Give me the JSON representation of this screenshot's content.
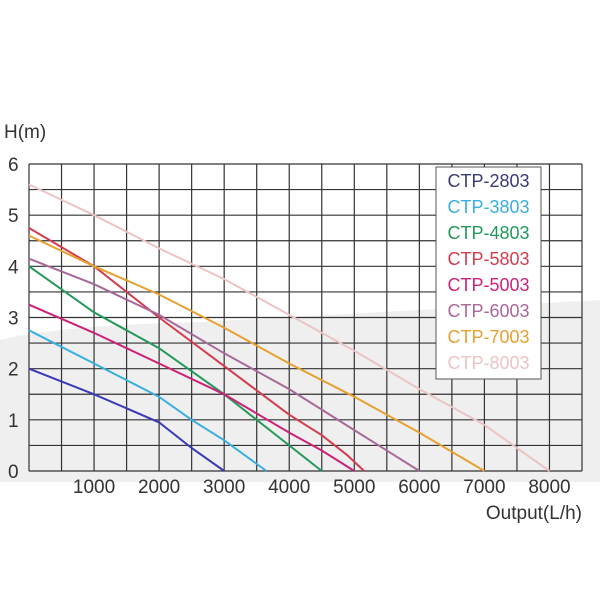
{
  "chart_data": {
    "type": "line",
    "title": "",
    "xlabel": "Output(L/h)",
    "ylabel": "H(m)",
    "xlim": [
      0,
      8500
    ],
    "ylim": [
      0,
      6
    ],
    "grid": true,
    "x_grid_step": 500,
    "y_grid_step": 0.5,
    "x_ticks": [
      1000,
      2000,
      3000,
      4000,
      5000,
      6000,
      7000,
      8000
    ],
    "y_ticks": [
      0,
      1,
      2,
      3,
      4,
      5,
      6
    ],
    "legend_placement": "top-right",
    "series": [
      {
        "name": "CTP-2803",
        "color": "#3a3ab8",
        "text_color": "#3a3a78",
        "points": [
          [
            0,
            2.0
          ],
          [
            1000,
            1.5
          ],
          [
            2000,
            0.95
          ],
          [
            2500,
            0.45
          ],
          [
            3000,
            0
          ]
        ]
      },
      {
        "name": "CTP-3803",
        "color": "#3aaee0",
        "text_color": "#3aaee0",
        "points": [
          [
            0,
            2.75
          ],
          [
            1000,
            2.1
          ],
          [
            2000,
            1.45
          ],
          [
            2500,
            1.0
          ],
          [
            3000,
            0.6
          ],
          [
            3650,
            0
          ]
        ]
      },
      {
        "name": "CTP-4803",
        "color": "#22995a",
        "text_color": "#22995a",
        "points": [
          [
            0,
            4.0
          ],
          [
            1000,
            3.1
          ],
          [
            2000,
            2.4
          ],
          [
            2500,
            1.95
          ],
          [
            3000,
            1.5
          ],
          [
            4000,
            0.5
          ],
          [
            4500,
            0
          ]
        ]
      },
      {
        "name": "CTP-5803",
        "color": "#d23c4e",
        "text_color": "#d23c4e",
        "points": [
          [
            0,
            4.75
          ],
          [
            1000,
            4.0
          ],
          [
            2000,
            3.0
          ],
          [
            3000,
            2.05
          ],
          [
            4000,
            1.1
          ],
          [
            4500,
            0.7
          ],
          [
            4900,
            0.3
          ],
          [
            5150,
            0
          ]
        ]
      },
      {
        "name": "CTP-5003",
        "color": "#cc2277",
        "text_color": "#cc2277",
        "points": [
          [
            0,
            3.25
          ],
          [
            1000,
            2.7
          ],
          [
            2000,
            2.1
          ],
          [
            3000,
            1.5
          ],
          [
            4000,
            0.75
          ],
          [
            4500,
            0.4
          ],
          [
            5000,
            0
          ]
        ]
      },
      {
        "name": "CTP-6003",
        "color": "#a8689a",
        "text_color": "#a8689a",
        "points": [
          [
            0,
            4.15
          ],
          [
            1000,
            3.65
          ],
          [
            2000,
            3.05
          ],
          [
            3000,
            2.3
          ],
          [
            4000,
            1.6
          ],
          [
            5000,
            0.8
          ],
          [
            6000,
            0
          ]
        ]
      },
      {
        "name": "CTP-7003",
        "color": "#e8a030",
        "text_color": "#e8a030",
        "points": [
          [
            0,
            4.6
          ],
          [
            1000,
            4.0
          ],
          [
            2000,
            3.45
          ],
          [
            3000,
            2.8
          ],
          [
            4000,
            2.1
          ],
          [
            5000,
            1.45
          ],
          [
            6000,
            0.75
          ],
          [
            7000,
            0
          ]
        ]
      },
      {
        "name": "CTP-8003",
        "color": "#ecc4c4",
        "text_color": "#ecc4c4",
        "points": [
          [
            0,
            5.6
          ],
          [
            1000,
            5.0
          ],
          [
            2000,
            4.35
          ],
          [
            3000,
            3.75
          ],
          [
            4000,
            3.05
          ],
          [
            5000,
            2.35
          ],
          [
            6000,
            1.6
          ],
          [
            7000,
            0.9
          ],
          [
            8000,
            0
          ]
        ]
      }
    ]
  }
}
